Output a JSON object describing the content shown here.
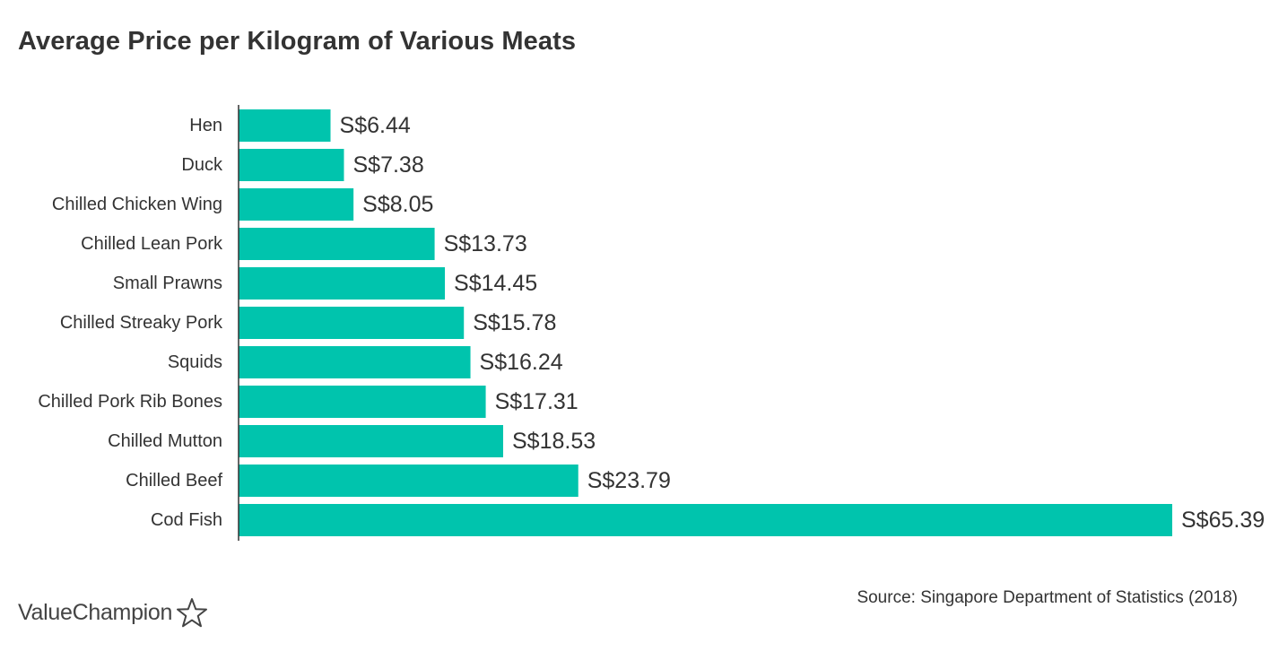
{
  "chart_data": {
    "type": "bar",
    "orientation": "horizontal",
    "title": "Average Price per Kilogram of Various Meats",
    "xlabel": "",
    "ylabel": "",
    "categories": [
      "Hen",
      "Duck",
      "Chilled Chicken Wing",
      "Chilled Lean Pork",
      "Small Prawns",
      "Chilled Streaky Pork",
      "Squids",
      "Chilled Pork Rib Bones",
      "Chilled Mutton",
      "Chilled Beef",
      "Cod Fish"
    ],
    "values": [
      6.44,
      7.38,
      8.05,
      13.73,
      14.45,
      15.78,
      16.24,
      17.31,
      18.53,
      23.79,
      65.39
    ],
    "value_labels": [
      "S$6.44",
      "S$7.38",
      "S$8.05",
      "S$13.73",
      "S$14.45",
      "S$15.78",
      "S$16.24",
      "S$17.31",
      "S$18.53",
      "S$23.79",
      "S$65.39"
    ],
    "xlim": [
      0,
      65.39
    ],
    "grid": false,
    "legend": "none",
    "colors": {
      "bar": "#00c4ad",
      "axis": "#333333",
      "text": "#333333"
    }
  },
  "footer": {
    "source": "Source: Singapore Department of Statistics (2018)",
    "brand": "ValueChampion",
    "brand_icon": "star-outline-icon"
  }
}
